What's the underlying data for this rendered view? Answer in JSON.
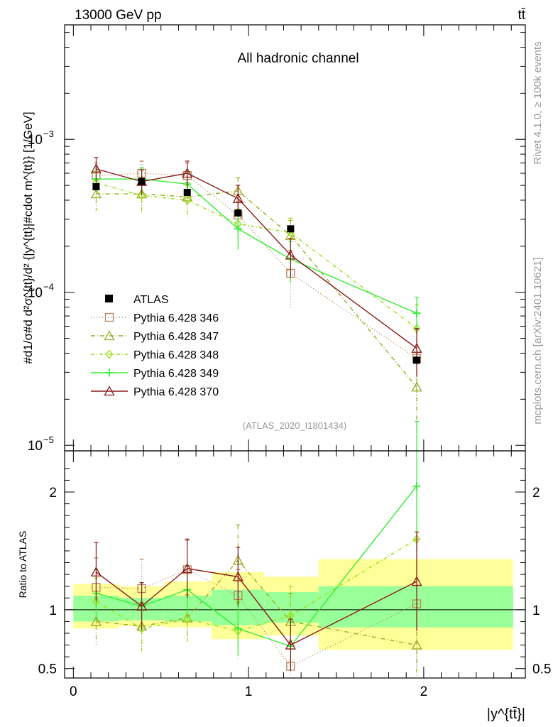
{
  "header": {
    "energy_label": "13000 GeV pp",
    "process_label": "tt̄"
  },
  "side": {
    "rivet_label": "Rivet 4.1.0, ≥ 100k events",
    "mcplots_label": "mcplots.cern.ch [arXiv:2401.10621]"
  },
  "chart_data": [
    {
      "type": "line",
      "panel": "main",
      "title": "All hadronic channel",
      "watermark": "(ATLAS_2020_I1801434)",
      "ylabel": "#d1/σ#d d²σ^{tt}/d² {|y^{tt}|#cdot m^{tt}} [1/GeV]",
      "yscale": "log",
      "ylim": [
        9.2e-06,
        0.0056
      ],
      "xlim": [
        -0.05,
        2.58
      ],
      "yticks": [
        {
          "value": 1e-05,
          "base": "10",
          "exp": "−5"
        },
        {
          "value": 0.0001,
          "base": "10",
          "exp": "−4"
        },
        {
          "value": 0.001,
          "base": "10",
          "exp": "−3"
        }
      ],
      "legend_position": "left-center",
      "data": {
        "x": [
          0.13,
          0.39,
          0.65,
          0.94,
          1.24,
          1.96
        ],
        "xerr": [
          0.13,
          0.13,
          0.13,
          0.15,
          0.15,
          0.55
        ],
        "values": [
          0.00049,
          0.00053,
          0.00045,
          0.00033,
          0.00026,
          3.6e-05
        ]
      },
      "series": [
        {
          "name": "ATLAS",
          "style": "data",
          "color": "#000000"
        },
        {
          "name": "Pythia 6.428 346",
          "color": "#b5835a",
          "marker": "square",
          "dash": "1,3",
          "values": [
            0.00058,
            0.0006,
            0.00058,
            0.00032,
            0.000133,
            3.7e-05
          ],
          "err": [
            0.00012,
            0.00012,
            0.00012,
            7e-05,
            5.5e-05,
            2e-05
          ]
        },
        {
          "name": "Pythia 6.428 347",
          "color": "#99aa22",
          "marker": "triangle",
          "dash": "6,3,1,3",
          "values": [
            0.00044,
            0.00044,
            0.00042,
            0.00046,
            0.000235,
            2.4e-05
          ],
          "err": [
            0.0001,
            0.0001,
            0.0001,
            0.0001,
            6e-05,
            1.2e-05
          ]
        },
        {
          "name": "Pythia 6.428 348",
          "color": "#99dd11",
          "marker": "diamond",
          "dash": "5,3,1,3",
          "values": [
            0.00052,
            0.00043,
            0.0004,
            0.00028,
            0.000245,
            5.8e-05
          ],
          "err": [
            0.0001,
            0.0001,
            0.0001,
            7e-05,
            6e-05,
            2.5e-05
          ]
        },
        {
          "name": "Pythia 6.428 349",
          "color": "#33ee33",
          "marker": "cross",
          "dash": "",
          "values": [
            0.00055,
            0.00055,
            0.00051,
            0.00026,
            0.000165,
            7.3e-05
          ],
          "err": [
            0.0001,
            0.0001,
            0.0001,
            7e-05,
            5e-05,
            2e-05
          ]
        },
        {
          "name": "Pythia 6.428 370",
          "color": "#8b1a1a",
          "marker": "triangle",
          "dash": "",
          "values": [
            0.00064,
            0.00053,
            0.0006,
            0.00041,
            0.000175,
            4.3e-05
          ],
          "err": [
            0.00012,
            0.0001,
            0.00012,
            9e-05,
            5e-05,
            1.5e-05
          ]
        }
      ]
    },
    {
      "type": "line",
      "panel": "ratio",
      "ylabel": "Ratio to ATLAS",
      "xlabel": "|y^{tt̄}|",
      "ylim": [
        0.42,
        2.35
      ],
      "xlim": [
        -0.05,
        2.58
      ],
      "yticks": [
        0.5,
        1,
        2
      ],
      "xticks": [
        0,
        1,
        2
      ],
      "bands": [
        {
          "x0": 0.0,
          "x1": 0.26,
          "inner": [
            0.9,
            1.12
          ],
          "outer": [
            0.84,
            1.22
          ]
        },
        {
          "x0": 0.26,
          "x1": 0.52,
          "inner": [
            0.91,
            1.1
          ],
          "outer": [
            0.86,
            1.2
          ]
        },
        {
          "x0": 0.52,
          "x1": 0.79,
          "inner": [
            0.9,
            1.12
          ],
          "outer": [
            0.85,
            1.24
          ]
        },
        {
          "x0": 0.79,
          "x1": 1.09,
          "inner": [
            0.87,
            1.17
          ],
          "outer": [
            0.75,
            1.32
          ]
        },
        {
          "x0": 1.09,
          "x1": 1.4,
          "inner": [
            0.89,
            1.15
          ],
          "outer": [
            0.78,
            1.28
          ]
        },
        {
          "x0": 1.4,
          "x1": 2.51,
          "inner": [
            0.85,
            1.2
          ],
          "outer": [
            0.66,
            1.43
          ]
        }
      ],
      "series": [
        {
          "name": "Pythia 6.428 346",
          "values": [
            1.19,
            1.18,
            1.34,
            1.12,
            0.52,
            1.05
          ],
          "err": [
            0.25,
            0.25,
            0.25,
            0.22,
            0.22,
            0.55
          ]
        },
        {
          "name": "Pythia 6.428 347",
          "values": [
            0.9,
            0.86,
            0.93,
            1.42,
            0.9,
            0.7
          ],
          "err": [
            0.2,
            0.2,
            0.2,
            0.3,
            0.24,
            0.35
          ]
        },
        {
          "name": "Pythia 6.428 348",
          "values": [
            1.07,
            0.84,
            0.92,
            0.82,
            0.95,
            1.6
          ],
          "err": [
            0.2,
            0.2,
            0.2,
            0.25,
            0.25,
            0.45
          ]
        },
        {
          "name": "Pythia 6.428 349",
          "values": [
            1.14,
            1.03,
            1.17,
            0.84,
            0.69,
            2.05
          ],
          "err": [
            0.2,
            0.2,
            0.2,
            0.22,
            0.2,
            0.55
          ]
        },
        {
          "name": "Pythia 6.428 370",
          "values": [
            1.32,
            1.03,
            1.35,
            1.28,
            0.7,
            1.24
          ],
          "err": [
            0.25,
            0.2,
            0.25,
            0.25,
            0.22,
            0.42
          ]
        }
      ]
    }
  ]
}
